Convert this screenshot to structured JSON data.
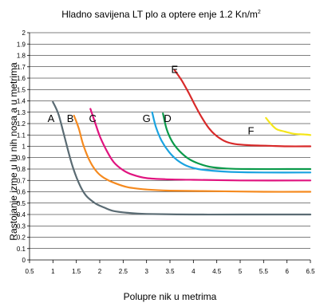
{
  "chart_data": {
    "type": "line",
    "title": "Hladno savijena LT plo a optere enje 1.2 Kn/m",
    "title_superscript": "2",
    "xlabel": "Polupre nik u metrima",
    "ylabel": "Rastojanje izme u lu nih nosa a u metrima",
    "xlim": [
      0.5,
      6.5
    ],
    "ylim": [
      0,
      2
    ],
    "xticks": [
      "0.5",
      "1",
      "1.5",
      "2",
      "2.5",
      "3",
      "3.5",
      "4",
      "4.5",
      "5",
      "5.5",
      "6",
      "6.5"
    ],
    "yticks": [
      "0",
      "0.1",
      "0.2",
      "0.3",
      "0.4",
      "0.5",
      "0.6",
      "0.7",
      "0.8",
      "0.9",
      "1",
      "1.1",
      "1.2",
      "1.3",
      "1.4",
      "1.5",
      "1.6",
      "1.7",
      "1.8",
      "1.9",
      "2"
    ],
    "grid": "horizontal",
    "series": [
      {
        "name": "A",
        "color": "#5a6b73",
        "x": [
          1.0,
          1.12,
          1.25,
          1.4,
          1.55,
          1.7,
          1.9,
          2.1,
          2.3,
          2.6,
          3.0,
          4.0,
          5.0,
          6.5
        ],
        "y": [
          1.39,
          1.28,
          1.08,
          0.85,
          0.68,
          0.57,
          0.5,
          0.46,
          0.43,
          0.415,
          0.405,
          0.4,
          0.4,
          0.4
        ]
      },
      {
        "name": "B",
        "color": "#f58a1f",
        "x": [
          1.45,
          1.55,
          1.65,
          1.8,
          1.95,
          2.1,
          2.3,
          2.6,
          3.0,
          3.5,
          4.5,
          5.5,
          6.5
        ],
        "y": [
          1.27,
          1.16,
          1.01,
          0.86,
          0.77,
          0.72,
          0.68,
          0.64,
          0.62,
          0.61,
          0.605,
          0.6,
          0.6
        ]
      },
      {
        "name": "C",
        "color": "#e0147f",
        "x": [
          1.8,
          1.9,
          2.0,
          2.15,
          2.3,
          2.5,
          2.7,
          3.0,
          3.4,
          4.0,
          5.0,
          6.5
        ],
        "y": [
          1.33,
          1.21,
          1.09,
          0.96,
          0.86,
          0.79,
          0.75,
          0.72,
          0.71,
          0.705,
          0.7,
          0.7
        ]
      },
      {
        "name": "G",
        "color": "#1aa3e0",
        "x": [
          3.12,
          3.2,
          3.32,
          3.48,
          3.65,
          3.85,
          4.1,
          4.4,
          4.8,
          5.5,
          6.5
        ],
        "y": [
          1.3,
          1.17,
          1.05,
          0.95,
          0.88,
          0.83,
          0.8,
          0.785,
          0.775,
          0.77,
          0.77
        ]
      },
      {
        "name": "D",
        "color": "#0a9a4a",
        "x": [
          3.35,
          3.43,
          3.55,
          3.7,
          3.9,
          4.1,
          4.35,
          4.7,
          5.2,
          6.0,
          6.5
        ],
        "y": [
          1.29,
          1.15,
          1.04,
          0.96,
          0.89,
          0.85,
          0.82,
          0.805,
          0.8,
          0.8,
          0.8
        ]
      },
      {
        "name": "E",
        "color": "#d82a2a",
        "x": [
          3.6,
          3.75,
          3.9,
          4.05,
          4.2,
          4.35,
          4.5,
          4.7,
          4.9,
          5.2,
          5.6,
          6.0,
          6.5
        ],
        "y": [
          1.67,
          1.58,
          1.47,
          1.35,
          1.24,
          1.15,
          1.09,
          1.04,
          1.02,
          1.01,
          1.005,
          1.0,
          1.0
        ]
      },
      {
        "name": "F",
        "color": "#f5e61a",
        "x": [
          5.55,
          5.65,
          5.78,
          5.95,
          6.15,
          6.35,
          6.5
        ],
        "y": [
          1.25,
          1.2,
          1.15,
          1.13,
          1.11,
          1.105,
          1.1
        ]
      }
    ],
    "labels": [
      {
        "text": "A",
        "x": 0.96,
        "y": 1.25
      },
      {
        "text": "B",
        "x": 1.37,
        "y": 1.25
      },
      {
        "text": "C",
        "x": 1.85,
        "y": 1.25
      },
      {
        "text": "G",
        "x": 3.0,
        "y": 1.25
      },
      {
        "text": "D",
        "x": 3.45,
        "y": 1.25
      },
      {
        "text": "E",
        "x": 3.6,
        "y": 1.68
      },
      {
        "text": "F",
        "x": 5.23,
        "y": 1.14
      }
    ]
  }
}
